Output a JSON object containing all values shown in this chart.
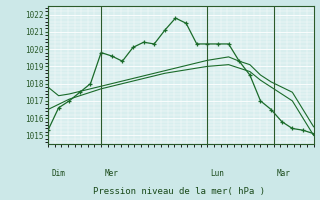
{
  "background_color": "#cce8e8",
  "plot_bg_color": "#d8eeee",
  "grid_color": "#ffffff",
  "line_color": "#1a6b2a",
  "marker_color": "#1a6b2a",
  "xlabel": "Pression niveau de la mer( hPa )",
  "ylim": [
    1014.5,
    1022.5
  ],
  "yticks": [
    1015,
    1016,
    1017,
    1018,
    1019,
    1020,
    1021,
    1022
  ],
  "day_labels": [
    "Dim",
    "Mer",
    "Lun",
    "Mar"
  ],
  "day_positions": [
    0,
    8,
    24,
    34
  ],
  "series1": [
    1015.3,
    1016.6,
    1017.0,
    1017.5,
    1018.0,
    1019.8,
    1019.6,
    1019.3,
    1020.1,
    1020.4,
    1020.3,
    1021.1,
    1021.8,
    1021.5,
    1020.3,
    1020.3,
    1020.3,
    1020.3,
    1019.3,
    1018.5,
    1017.0,
    1016.5,
    1015.8,
    1015.4,
    1015.3,
    1015.1
  ],
  "series2": [
    1017.8,
    1017.3,
    1017.4,
    1017.55,
    1017.7,
    1017.85,
    1018.0,
    1018.15,
    1018.3,
    1018.45,
    1018.6,
    1018.75,
    1018.9,
    1019.05,
    1019.2,
    1019.35,
    1019.45,
    1019.55,
    1019.3,
    1019.1,
    1018.5,
    1018.1,
    1017.8,
    1017.5,
    1016.5,
    1015.5
  ],
  "series3": [
    1016.5,
    1016.8,
    1017.1,
    1017.3,
    1017.5,
    1017.7,
    1017.85,
    1018.0,
    1018.15,
    1018.3,
    1018.45,
    1018.6,
    1018.7,
    1018.8,
    1018.9,
    1019.0,
    1019.05,
    1019.1,
    1018.9,
    1018.7,
    1018.2,
    1017.8,
    1017.4,
    1017.0,
    1016.0,
    1015.0
  ]
}
